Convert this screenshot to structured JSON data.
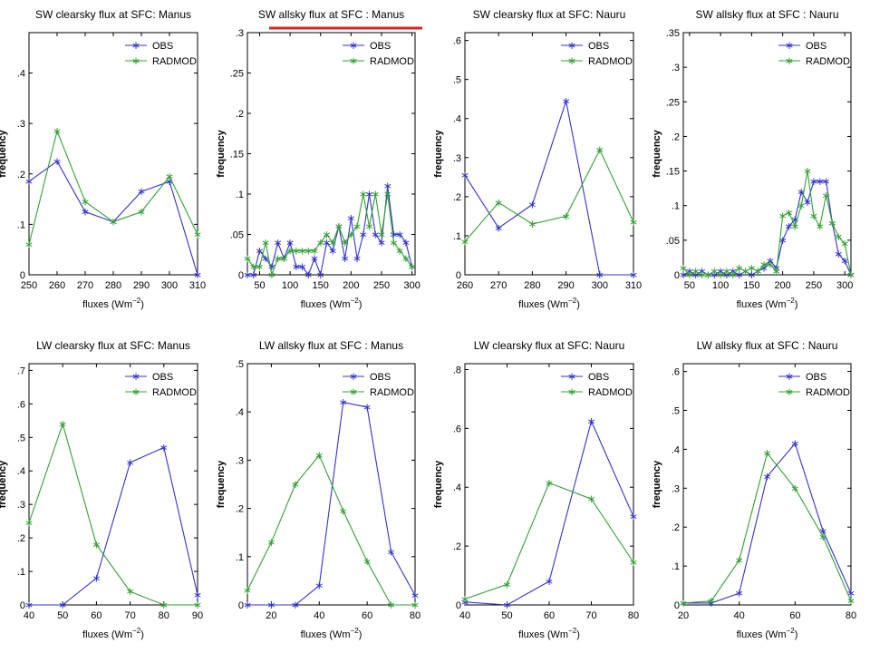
{
  "chart_data": [
    {
      "type": "line",
      "title": "SW clearsky flux at SFC: Manus",
      "xlabel": "fluxes (Wm^-2)",
      "ylabel": "frequency",
      "xlim": [
        250,
        310
      ],
      "ylim": [
        0,
        0.48
      ],
      "xticks": [
        250,
        260,
        270,
        280,
        290,
        300,
        310
      ],
      "yticks": [
        0,
        0.1,
        0.2,
        0.3,
        0.4
      ],
      "legend": "top-right",
      "grid": false,
      "series": [
        {
          "name": "OBS",
          "color": "#3333cc",
          "x": [
            250,
            260,
            270,
            280,
            290,
            300,
            310
          ],
          "y": [
            0.185,
            0.225,
            0.125,
            0.105,
            0.165,
            0.185,
            0.0
          ]
        },
        {
          "name": "RADMOD",
          "color": "#33a033",
          "x": [
            250,
            260,
            270,
            280,
            290,
            300,
            310
          ],
          "y": [
            0.06,
            0.285,
            0.145,
            0.105,
            0.125,
            0.195,
            0.08
          ]
        }
      ]
    },
    {
      "type": "line",
      "title": "SW allsky flux at SFC : Manus",
      "xlabel": "fluxes (Wm^-2)",
      "ylabel": "frequency",
      "xlim": [
        30,
        305
      ],
      "ylim": [
        0,
        0.3
      ],
      "xticks": [
        50,
        100,
        150,
        200,
        250,
        300
      ],
      "yticks": [
        0,
        0.05,
        0.1,
        0.15,
        0.2,
        0.25,
        0.3
      ],
      "legend": "top-right",
      "grid": false,
      "series": [
        {
          "name": "OBS",
          "color": "#3333cc",
          "x": [
            30,
            40,
            50,
            60,
            70,
            80,
            90,
            100,
            110,
            120,
            130,
            140,
            150,
            160,
            170,
            180,
            190,
            200,
            210,
            220,
            230,
            240,
            250,
            260,
            270,
            280,
            290,
            300
          ],
          "y": [
            0,
            0,
            0.03,
            0.02,
            0.01,
            0.04,
            0.02,
            0.04,
            0.01,
            0.01,
            0,
            0.02,
            0,
            0.04,
            0.03,
            0.06,
            0.02,
            0.07,
            0.02,
            0.05,
            0.1,
            0.05,
            0.04,
            0.11,
            0.05,
            0.05,
            0.04,
            0.01
          ]
        },
        {
          "name": "RADMOD",
          "color": "#33a033",
          "x": [
            30,
            40,
            50,
            60,
            70,
            80,
            90,
            100,
            110,
            120,
            130,
            140,
            150,
            160,
            170,
            180,
            190,
            200,
            210,
            220,
            230,
            240,
            250,
            260,
            270,
            280,
            290,
            300
          ],
          "y": [
            0.02,
            0.01,
            0.01,
            0.04,
            0,
            0.02,
            0.02,
            0.03,
            0.03,
            0.03,
            0.03,
            0.03,
            0.04,
            0.05,
            0.04,
            0.06,
            0.04,
            0.05,
            0.06,
            0.1,
            0.06,
            0.1,
            0.05,
            0.1,
            0.04,
            0.03,
            0.02,
            0.01
          ]
        }
      ]
    },
    {
      "type": "line",
      "title": "SW clearsky flux at SFC: Nauru",
      "xlabel": "fluxes (Wm^-2)",
      "ylabel": "frequency",
      "xlim": [
        260,
        310
      ],
      "ylim": [
        0,
        0.62
      ],
      "xticks": [
        260,
        270,
        280,
        290,
        300,
        310
      ],
      "yticks": [
        0,
        0.1,
        0.2,
        0.3,
        0.4,
        0.5,
        0.6
      ],
      "legend": "top-right",
      "grid": false,
      "series": [
        {
          "name": "OBS",
          "color": "#3333cc",
          "x": [
            260,
            270,
            280,
            290,
            300,
            310
          ],
          "y": [
            0.255,
            0.12,
            0.18,
            0.445,
            0.0,
            0.0
          ]
        },
        {
          "name": "RADMOD",
          "color": "#33a033",
          "x": [
            260,
            270,
            280,
            290,
            300,
            310
          ],
          "y": [
            0.085,
            0.185,
            0.13,
            0.15,
            0.32,
            0.135
          ]
        }
      ]
    },
    {
      "type": "line",
      "title": "SW allsky flux at SFC : Nauru",
      "xlabel": "fluxes (Wm^-2)",
      "ylabel": "frequency",
      "xlim": [
        40,
        310
      ],
      "ylim": [
        0,
        0.35
      ],
      "xticks": [
        50,
        100,
        150,
        200,
        250,
        300
      ],
      "yticks": [
        0,
        0.05,
        0.1,
        0.15,
        0.2,
        0.25,
        0.3,
        0.35
      ],
      "legend": "top-right",
      "grid": false,
      "series": [
        {
          "name": "OBS",
          "color": "#3333cc",
          "x": [
            40,
            50,
            60,
            70,
            80,
            90,
            100,
            110,
            120,
            130,
            140,
            150,
            160,
            170,
            180,
            190,
            200,
            210,
            220,
            230,
            240,
            250,
            260,
            270,
            280,
            290,
            300,
            310
          ],
          "y": [
            0,
            0.005,
            0,
            0.005,
            0,
            0,
            0.005,
            0,
            0.005,
            0,
            0.005,
            0,
            0.005,
            0.01,
            0.02,
            0.01,
            0.05,
            0.07,
            0.08,
            0.12,
            0.105,
            0.135,
            0.135,
            0.135,
            0.075,
            0.03,
            0.02,
            0
          ]
        },
        {
          "name": "RADMOD",
          "color": "#33a033",
          "x": [
            40,
            50,
            60,
            70,
            80,
            90,
            100,
            110,
            120,
            130,
            140,
            150,
            160,
            170,
            180,
            190,
            200,
            210,
            220,
            230,
            240,
            250,
            260,
            270,
            280,
            290,
            300,
            310
          ],
          "y": [
            0.01,
            0,
            0.005,
            0,
            0,
            0.005,
            0,
            0.005,
            0,
            0.01,
            0.005,
            0.01,
            0.005,
            0.015,
            0.015,
            0.005,
            0.085,
            0.09,
            0.07,
            0.1,
            0.15,
            0.085,
            0.07,
            0.115,
            0.075,
            0.055,
            0.045,
            0
          ]
        }
      ]
    },
    {
      "type": "line",
      "title": "LW clearsky flux at SFC: Manus",
      "xlabel": "fluxes (Wm^-2)",
      "ylabel": "frequency",
      "xlim": [
        40,
        90
      ],
      "ylim": [
        0,
        0.72
      ],
      "xticks": [
        40,
        50,
        60,
        70,
        80,
        90
      ],
      "yticks": [
        0,
        0.1,
        0.2,
        0.3,
        0.4,
        0.5,
        0.6,
        0.7
      ],
      "legend": "top-right",
      "grid": false,
      "series": [
        {
          "name": "OBS",
          "color": "#3333cc",
          "x": [
            40,
            50,
            60,
            70,
            80,
            90
          ],
          "y": [
            0.0,
            0.0,
            0.08,
            0.425,
            0.47,
            0.03
          ]
        },
        {
          "name": "RADMOD",
          "color": "#33a033",
          "x": [
            40,
            50,
            60,
            70,
            80,
            90
          ],
          "y": [
            0.245,
            0.54,
            0.18,
            0.04,
            0.0,
            0.0
          ]
        }
      ]
    },
    {
      "type": "line",
      "title": "LW allsky flux at SFC    : Manus",
      "xlabel": "fluxes (Wm^-2)",
      "ylabel": "frequency",
      "xlim": [
        10,
        80
      ],
      "ylim": [
        0,
        0.5
      ],
      "xticks": [
        20,
        40,
        60,
        80
      ],
      "yticks": [
        0,
        0.1,
        0.2,
        0.3,
        0.4,
        0.5
      ],
      "legend": "top-right",
      "grid": false,
      "series": [
        {
          "name": "OBS",
          "color": "#3333cc",
          "x": [
            10,
            20,
            30,
            40,
            50,
            60,
            70,
            80
          ],
          "y": [
            0.0,
            0.0,
            0.0,
            0.04,
            0.42,
            0.41,
            0.11,
            0.02
          ]
        },
        {
          "name": "RADMOD",
          "color": "#33a033",
          "x": [
            10,
            20,
            30,
            40,
            50,
            60,
            70,
            80
          ],
          "y": [
            0.03,
            0.13,
            0.25,
            0.31,
            0.195,
            0.09,
            0.0,
            0.0
          ]
        }
      ]
    },
    {
      "type": "line",
      "title": "LW clearsky flux at SFC: Nauru",
      "xlabel": "fluxes (Wm^-2)",
      "ylabel": "frequency",
      "xlim": [
        40,
        80
      ],
      "ylim": [
        0,
        0.82
      ],
      "xticks": [
        40,
        50,
        60,
        70,
        80
      ],
      "yticks": [
        0,
        0.2,
        0.4,
        0.6,
        0.8
      ],
      "legend": "top-right",
      "grid": false,
      "series": [
        {
          "name": "OBS",
          "color": "#3333cc",
          "x": [
            40,
            50,
            60,
            70,
            80
          ],
          "y": [
            0.01,
            0.0,
            0.08,
            0.625,
            0.3
          ]
        },
        {
          "name": "RADMOD",
          "color": "#33a033",
          "x": [
            40,
            50,
            60,
            70,
            80
          ],
          "y": [
            0.02,
            0.07,
            0.415,
            0.36,
            0.145
          ]
        }
      ]
    },
    {
      "type": "line",
      "title": "LW allsky flux at SFC    : Nauru",
      "xlabel": "fluxes (Wm^-2)",
      "ylabel": "frequency",
      "xlim": [
        20,
        80
      ],
      "ylim": [
        0,
        0.62
      ],
      "xticks": [
        20,
        40,
        60,
        80
      ],
      "yticks": [
        0,
        0.1,
        0.2,
        0.3,
        0.4,
        0.5,
        0.6
      ],
      "legend": "top-right",
      "grid": false,
      "series": [
        {
          "name": "OBS",
          "color": "#3333cc",
          "x": [
            20,
            30,
            40,
            50,
            60,
            70,
            80
          ],
          "y": [
            0.005,
            0.005,
            0.03,
            0.33,
            0.415,
            0.19,
            0.03
          ]
        },
        {
          "name": "RADMOD",
          "color": "#33a033",
          "x": [
            20,
            30,
            40,
            50,
            60,
            70,
            80
          ],
          "y": [
            0.005,
            0.01,
            0.115,
            0.39,
            0.3,
            0.175,
            0.01
          ]
        }
      ]
    }
  ],
  "highlight": {
    "color": "#e02020",
    "panel": 1
  }
}
